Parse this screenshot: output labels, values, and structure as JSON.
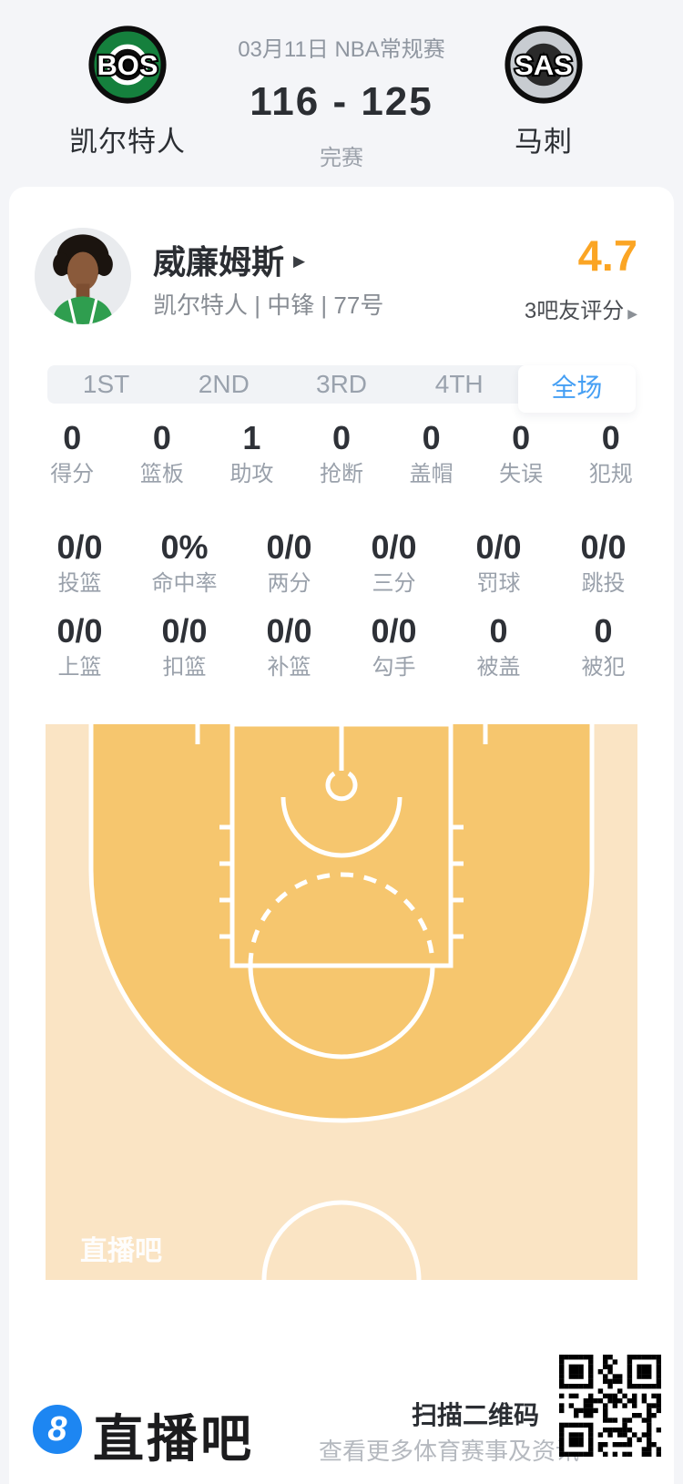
{
  "header": {
    "date_label": "03月11日 NBA常规赛",
    "score": "116 - 125",
    "status": "完赛",
    "home_team": {
      "abbr": "BOS",
      "name": "凯尔特人"
    },
    "away_team": {
      "abbr": "SAS",
      "name": "马刺"
    }
  },
  "player": {
    "name": "威廉姆斯",
    "detail_arrow": "▶",
    "info": "凯尔特人 | 中锋 | 77号",
    "rating": "4.7",
    "rating_label": "3吧友评分",
    "rating_arrow": "▶"
  },
  "tabs": [
    {
      "label": "1ST"
    },
    {
      "label": "2ND"
    },
    {
      "label": "3RD"
    },
    {
      "label": "4TH"
    },
    {
      "label": "全场",
      "active": true
    }
  ],
  "stats": {
    "row1": [
      {
        "value": "0",
        "label": "得分"
      },
      {
        "value": "0",
        "label": "篮板"
      },
      {
        "value": "1",
        "label": "助攻"
      },
      {
        "value": "0",
        "label": "抢断"
      },
      {
        "value": "0",
        "label": "盖帽"
      },
      {
        "value": "0",
        "label": "失误"
      },
      {
        "value": "0",
        "label": "犯规"
      }
    ],
    "row2": [
      {
        "value": "0/0",
        "label": "投篮"
      },
      {
        "value": "0%",
        "label": "命中率"
      },
      {
        "value": "0/0",
        "label": "两分"
      },
      {
        "value": "0/0",
        "label": "三分"
      },
      {
        "value": "0/0",
        "label": "罚球"
      },
      {
        "value": "0/0",
        "label": "跳投"
      }
    ],
    "row3": [
      {
        "value": "0/0",
        "label": "上篮"
      },
      {
        "value": "0/0",
        "label": "扣篮"
      },
      {
        "value": "0/0",
        "label": "补篮"
      },
      {
        "value": "0/0",
        "label": "勾手"
      },
      {
        "value": "0",
        "label": "被盖"
      },
      {
        "value": "0",
        "label": "被犯"
      }
    ]
  },
  "court": {
    "watermark": "直播吧"
  },
  "footer": {
    "logo_badge": "8",
    "logo_text": "直播吧",
    "scan_title": "扫描二维码",
    "scan_subtitle": "查看更多体育赛事及资讯"
  },
  "colors": {
    "accent_blue": "#459ff4",
    "rating_orange": "#FBA524",
    "court_inner": "#F6C66E",
    "court_outer": "#FAE4C4",
    "celtics_green": "#15803d",
    "spurs_silver": "#c8ccd1",
    "brand_blue": "#1d86f2"
  }
}
